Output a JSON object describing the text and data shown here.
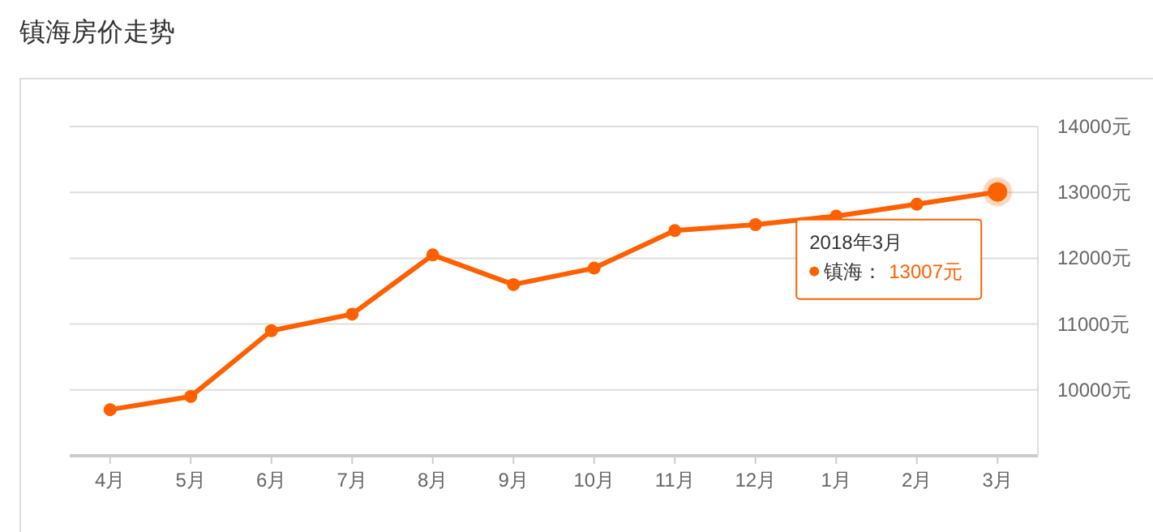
{
  "chart_data": {
    "type": "line",
    "title": "镇海房价走势",
    "categories": [
      "4月",
      "5月",
      "6月",
      "7月",
      "8月",
      "9月",
      "10月",
      "11月",
      "12月",
      "1月",
      "2月",
      "3月"
    ],
    "series": [
      {
        "name": "镇海：",
        "color": "#ff6000",
        "values": [
          9700,
          9900,
          10900,
          11150,
          12050,
          11600,
          11850,
          12420,
          12510,
          12640,
          12820,
          13007
        ],
        "value_labels": [
          null,
          null,
          null,
          null,
          null,
          null,
          null,
          null,
          null,
          null,
          null,
          "13007元"
        ]
      }
    ],
    "ylim": [
      9000,
      14000
    ],
    "yticks": [
      {
        "value": 10000,
        "label": "10000元"
      },
      {
        "value": 11000,
        "label": "11000元"
      },
      {
        "value": 12000,
        "label": "12000元"
      },
      {
        "value": 13000,
        "label": "13000元"
      },
      {
        "value": 14000,
        "label": "14000元"
      }
    ],
    "grid": "y",
    "marker": "circle",
    "line_style": "solid",
    "legend": "right",
    "annotations": [
      "2018年3月"
    ]
  }
}
